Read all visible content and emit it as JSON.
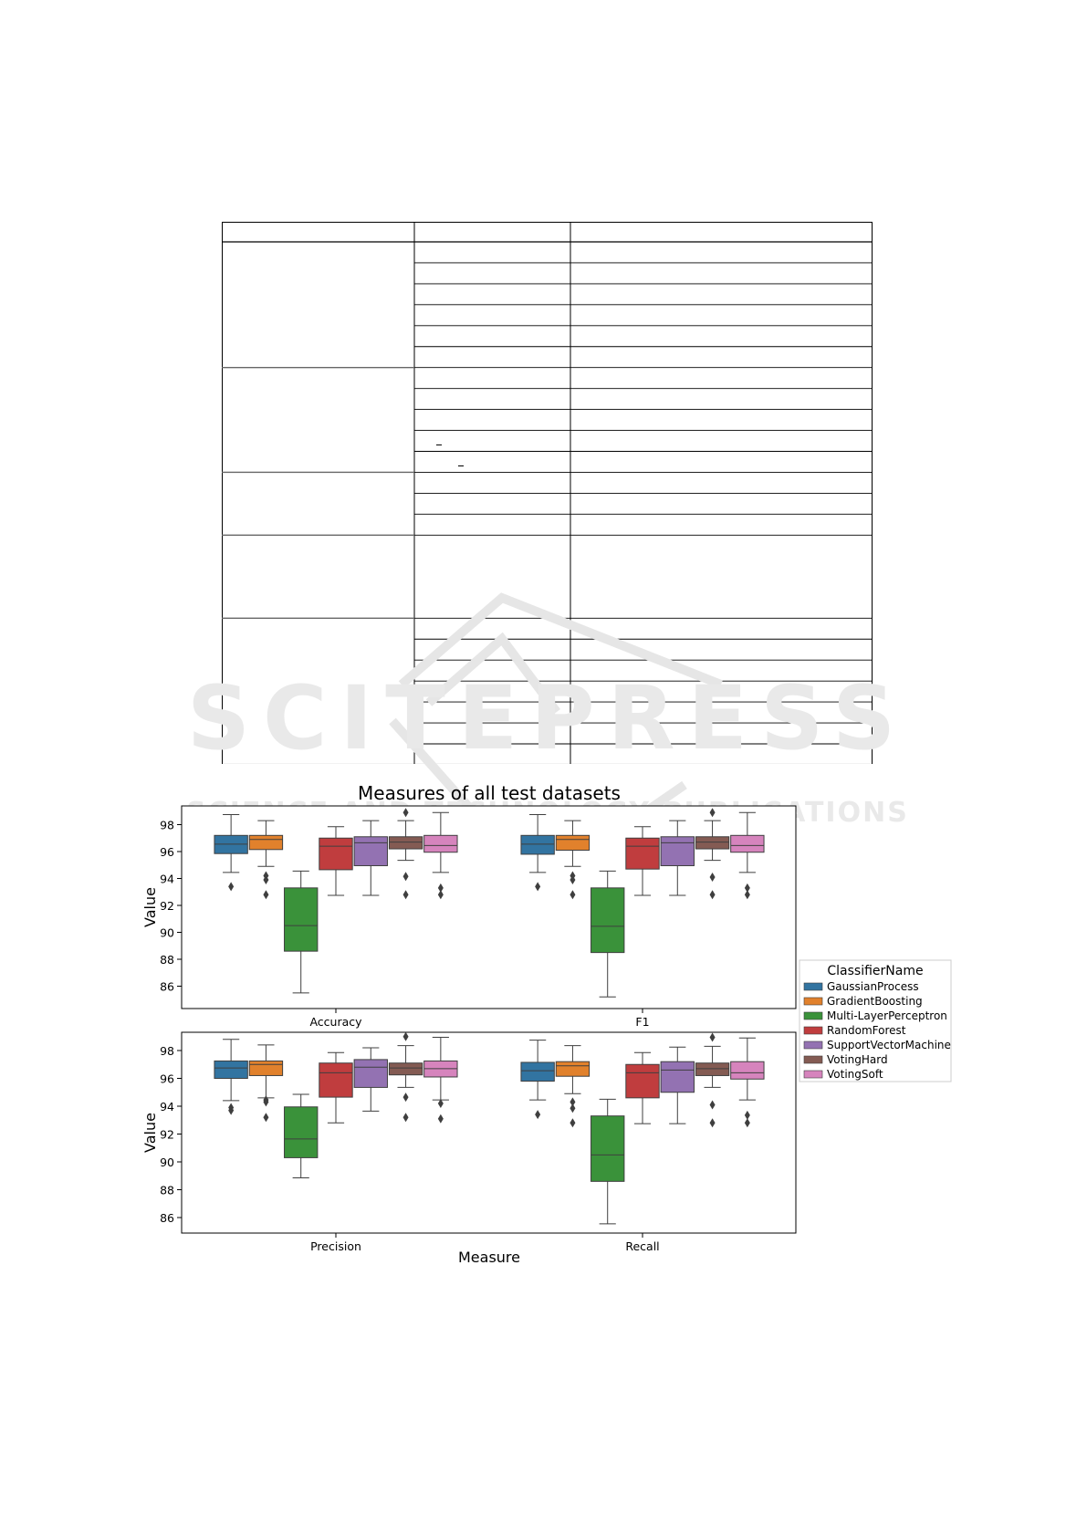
{
  "page": {
    "watermark_main": "SCITEPRESS",
    "watermark_sub": "SCIENCE AND TECHNOLOGY PUBLICATIONS"
  },
  "table": {
    "left_col_row_groups": [
      6,
      5,
      3,
      1,
      7
    ],
    "row_kinds": [
      "r",
      "r",
      "r",
      "r",
      "r",
      "r",
      "r",
      "r",
      "r",
      "r",
      "r",
      "r",
      "r",
      "r",
      "tall",
      "r",
      "r",
      "r",
      "r",
      "r",
      "r",
      "r"
    ],
    "underscore_marks": [
      {
        "row": 9,
        "col": 1
      },
      {
        "row": 10,
        "col": 1
      }
    ]
  },
  "figure": {
    "title": "Measures of all test datasets",
    "legend_title": "ClassifierName",
    "x_axis_label": "Measure",
    "y_axis_label": "Value",
    "y_ticks": [
      "86",
      "88",
      "90",
      "92",
      "94",
      "96",
      "98"
    ]
  },
  "chart_data": {
    "type": "box",
    "title": "Measures of all test datasets",
    "xlabel": "Measure",
    "ylabel": "Value",
    "ylim": [
      85,
      99
    ],
    "legend_position": "right",
    "legend_title": "ClassifierName",
    "classifiers": [
      {
        "name": "GaussianProcess",
        "color": "#3274a1"
      },
      {
        "name": "GradientBoosting",
        "color": "#e1812c"
      },
      {
        "name": "Multi-LayerPerceptron",
        "color": "#3a923a"
      },
      {
        "name": "RandomForest",
        "color": "#c03d3e"
      },
      {
        "name": "SupportVectorMachine",
        "color": "#9372b2"
      },
      {
        "name": "VotingHard",
        "color": "#845b53"
      },
      {
        "name": "VotingSoft",
        "color": "#d684bd"
      }
    ],
    "panels": [
      {
        "measures": [
          "Accuracy",
          "F1"
        ],
        "boxes": {
          "Accuracy": [
            {
              "whislo": 94.45,
              "q1": 95.85,
              "med": 96.55,
              "q3": 97.2,
              "whishi": 98.75,
              "fliers": [
                93.4
              ]
            },
            {
              "whislo": 94.9,
              "q1": 96.15,
              "med": 96.9,
              "q3": 97.2,
              "whishi": 98.3,
              "fliers": [
                94.2,
                93.9,
                92.8
              ]
            },
            {
              "whislo": 85.5,
              "q1": 88.6,
              "med": 90.5,
              "q3": 93.3,
              "whishi": 94.55,
              "fliers": []
            },
            {
              "whislo": 92.75,
              "q1": 94.65,
              "med": 96.4,
              "q3": 97.0,
              "whishi": 97.85,
              "fliers": []
            },
            {
              "whislo": 92.75,
              "q1": 94.95,
              "med": 96.65,
              "q3": 97.1,
              "whishi": 98.3,
              "fliers": []
            },
            {
              "whislo": 95.35,
              "q1": 96.2,
              "med": 96.7,
              "q3": 97.1,
              "whishi": 98.3,
              "fliers": [
                98.9,
                94.15,
                92.8
              ]
            },
            {
              "whislo": 94.45,
              "q1": 95.95,
              "med": 96.45,
              "q3": 97.2,
              "whishi": 98.9,
              "fliers": [
                93.3,
                92.8
              ]
            }
          ],
          "F1": [
            {
              "whislo": 94.45,
              "q1": 95.8,
              "med": 96.55,
              "q3": 97.2,
              "whishi": 98.75,
              "fliers": [
                93.4
              ]
            },
            {
              "whislo": 94.9,
              "q1": 96.1,
              "med": 96.9,
              "q3": 97.2,
              "whishi": 98.3,
              "fliers": [
                94.2,
                93.9,
                92.8
              ]
            },
            {
              "whislo": 85.2,
              "q1": 88.5,
              "med": 90.45,
              "q3": 93.3,
              "whishi": 94.55,
              "fliers": []
            },
            {
              "whislo": 92.75,
              "q1": 94.7,
              "med": 96.4,
              "q3": 97.0,
              "whishi": 97.85,
              "fliers": []
            },
            {
              "whislo": 92.75,
              "q1": 94.95,
              "med": 96.65,
              "q3": 97.1,
              "whishi": 98.3,
              "fliers": []
            },
            {
              "whislo": 95.35,
              "q1": 96.2,
              "med": 96.7,
              "q3": 97.1,
              "whishi": 98.3,
              "fliers": [
                98.9,
                94.1,
                92.8
              ]
            },
            {
              "whislo": 94.45,
              "q1": 95.95,
              "med": 96.45,
              "q3": 97.2,
              "whishi": 98.9,
              "fliers": [
                93.3,
                92.8
              ]
            }
          ]
        }
      },
      {
        "measures": [
          "Precision",
          "Recall"
        ],
        "boxes": {
          "Precision": [
            {
              "whislo": 94.4,
              "q1": 96.0,
              "med": 96.75,
              "q3": 97.25,
              "whishi": 98.8,
              "fliers": [
                93.9,
                93.7
              ]
            },
            {
              "whislo": 94.6,
              "q1": 96.2,
              "med": 97.0,
              "q3": 97.25,
              "whishi": 98.4,
              "fliers": [
                94.45,
                94.3,
                93.2
              ]
            },
            {
              "whislo": 88.85,
              "q1": 90.3,
              "med": 91.65,
              "q3": 93.95,
              "whishi": 94.85,
              "fliers": []
            },
            {
              "whislo": 92.8,
              "q1": 94.65,
              "med": 96.4,
              "q3": 97.1,
              "whishi": 97.85,
              "fliers": []
            },
            {
              "whislo": 93.65,
              "q1": 95.35,
              "med": 96.8,
              "q3": 97.35,
              "whishi": 98.2,
              "fliers": []
            },
            {
              "whislo": 95.35,
              "q1": 96.25,
              "med": 96.75,
              "q3": 97.1,
              "whishi": 98.35,
              "fliers": [
                99.0,
                94.65,
                93.2
              ]
            },
            {
              "whislo": 94.45,
              "q1": 96.1,
              "med": 96.7,
              "q3": 97.25,
              "whishi": 98.95,
              "fliers": [
                94.2,
                93.1
              ]
            }
          ],
          "Recall": [
            {
              "whislo": 94.45,
              "q1": 95.8,
              "med": 96.55,
              "q3": 97.15,
              "whishi": 98.75,
              "fliers": [
                93.4
              ]
            },
            {
              "whislo": 94.9,
              "q1": 96.15,
              "med": 96.9,
              "q3": 97.2,
              "whishi": 98.35,
              "fliers": [
                94.3,
                93.85,
                92.8
              ]
            },
            {
              "whislo": 85.55,
              "q1": 88.6,
              "med": 90.5,
              "q3": 93.3,
              "whishi": 94.5,
              "fliers": []
            },
            {
              "whislo": 92.75,
              "q1": 94.6,
              "med": 96.4,
              "q3": 97.0,
              "whishi": 97.85,
              "fliers": []
            },
            {
              "whislo": 92.75,
              "q1": 95.0,
              "med": 96.6,
              "q3": 97.2,
              "whishi": 98.25,
              "fliers": []
            },
            {
              "whislo": 95.35,
              "q1": 96.2,
              "med": 96.7,
              "q3": 97.1,
              "whishi": 98.3,
              "fliers": [
                98.95,
                94.1,
                92.8
              ]
            },
            {
              "whislo": 94.45,
              "q1": 95.95,
              "med": 96.4,
              "q3": 97.2,
              "whishi": 98.9,
              "fliers": [
                93.35,
                92.8
              ]
            }
          ]
        }
      }
    ]
  }
}
